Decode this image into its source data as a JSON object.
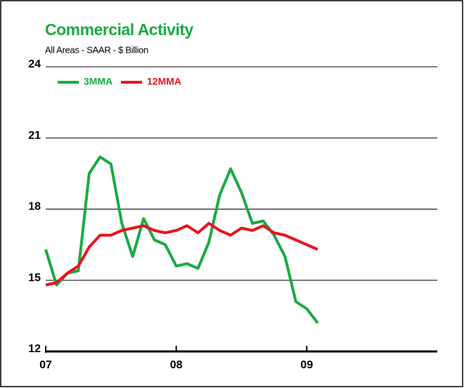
{
  "chart_data": {
    "type": "line",
    "title": "Commercial Activity",
    "subtitle": "All Areas - SAAR - $ Billion",
    "x": [
      0,
      1,
      2,
      3,
      4,
      5,
      6,
      7,
      8,
      9,
      10,
      11,
      12,
      13,
      14,
      15,
      16,
      17,
      18,
      19,
      20,
      21,
      22,
      23,
      24,
      25
    ],
    "series": [
      {
        "name": "3MMA",
        "color": "#1aaa44",
        "values": [
          16.3,
          14.8,
          15.3,
          15.4,
          19.5,
          20.2,
          19.9,
          17.4,
          16.0,
          17.6,
          16.7,
          16.5,
          15.6,
          15.7,
          15.5,
          16.6,
          18.6,
          19.7,
          18.7,
          17.4,
          17.5,
          16.9,
          16.0,
          14.1,
          13.8,
          13.2
        ]
      },
      {
        "name": "12MMA",
        "color": "#e8141c",
        "values": [
          14.8,
          14.9,
          15.3,
          15.6,
          16.4,
          16.9,
          16.9,
          17.1,
          17.2,
          17.3,
          17.1,
          17.0,
          17.1,
          17.3,
          17.0,
          17.4,
          17.1,
          16.9,
          17.2,
          17.1,
          17.3,
          17.0,
          16.9,
          16.7,
          16.5,
          16.3
        ]
      }
    ],
    "xlim": [
      0,
      36
    ],
    "xticks": [
      {
        "value": 0,
        "label": "07"
      },
      {
        "value": 12,
        "label": "08"
      },
      {
        "value": 24,
        "label": "09"
      }
    ],
    "ylim": [
      12,
      24
    ],
    "yticks": [
      12,
      15,
      18,
      21,
      24
    ],
    "grid": true,
    "legend": "upper left"
  }
}
